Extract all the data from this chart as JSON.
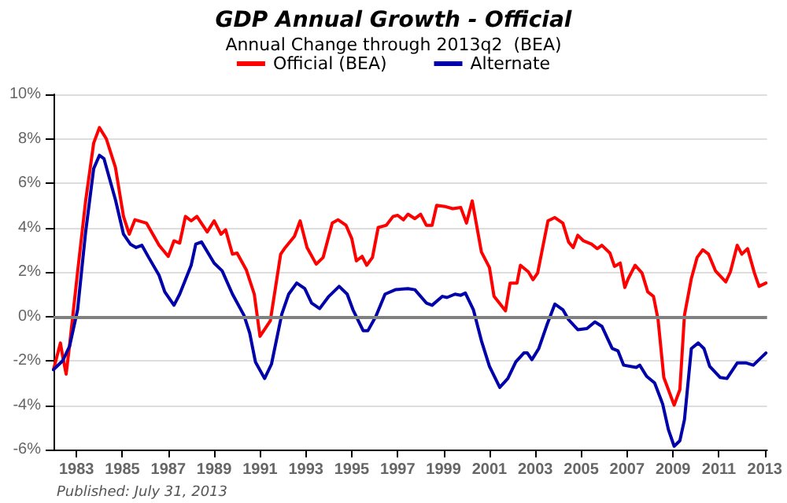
{
  "chart_data": {
    "type": "line",
    "title": "GDP Annual Growth - Official",
    "subtitle": "Annual Change through 2013q2  (BEA)",
    "annotations": [
      "Published: July 31, 2013"
    ],
    "xlim": [
      1982,
      2013.1
    ],
    "xticks": [
      1983,
      1985,
      1987,
      1989,
      1991,
      1993,
      1995,
      1997,
      1999,
      2001,
      2003,
      2005,
      2007,
      2009,
      2011,
      2013
    ],
    "ylim": [
      -6,
      10
    ],
    "yticks": [
      {
        "value": -6,
        "label": "-6%"
      },
      {
        "value": -4,
        "label": "-4%"
      },
      {
        "value": -2,
        "label": "-2%"
      },
      {
        "value": 0,
        "label": "0%"
      },
      {
        "value": 2,
        "label": "2%"
      },
      {
        "value": 4,
        "label": "4%"
      },
      {
        "value": 6,
        "label": "6%"
      },
      {
        "value": 8,
        "label": "8%"
      },
      {
        "value": 10,
        "label": "10%"
      }
    ],
    "grid": "y",
    "legend": "top",
    "marker": "none",
    "line_style": "solid",
    "ref_lines": [
      {
        "axis": "y",
        "value": 0,
        "label": null,
        "color": "#808080"
      }
    ],
    "series": [
      {
        "name": "Official (BEA)",
        "color": "#ff0000",
        "x": [
          1982.0,
          1982.3,
          1982.4,
          1982.55,
          1982.7,
          1983.05,
          1983.4,
          1983.75,
          1984.0,
          1984.3,
          1984.7,
          1985.05,
          1985.3,
          1985.55,
          1986.05,
          1986.6,
          1987.0,
          1987.25,
          1987.5,
          1987.75,
          1988.0,
          1988.25,
          1988.7,
          1989.0,
          1989.3,
          1989.5,
          1989.8,
          1990.0,
          1990.4,
          1990.75,
          1991.0,
          1991.45,
          1991.9,
          1992.1,
          1992.5,
          1992.75,
          1993.05,
          1993.45,
          1993.75,
          1994.15,
          1994.4,
          1994.75,
          1995.0,
          1995.2,
          1995.45,
          1995.65,
          1995.9,
          1996.15,
          1996.5,
          1996.8,
          1997.0,
          1997.25,
          1997.45,
          1997.75,
          1998.0,
          1998.25,
          1998.5,
          1998.7,
          1999.05,
          1999.4,
          1999.75,
          2000.0,
          2000.25,
          2000.65,
          2001.0,
          2001.2,
          2001.7,
          2001.9,
          2002.2,
          2002.35,
          2002.7,
          2002.9,
          2003.1,
          2003.55,
          2003.85,
          2004.2,
          2004.45,
          2004.65,
          2004.85,
          2005.1,
          2005.45,
          2005.7,
          2005.9,
          2006.25,
          2006.45,
          2006.7,
          2006.9,
          2007.05,
          2007.35,
          2007.65,
          2007.9,
          2008.15,
          2008.35,
          2008.6,
          2009.05,
          2009.3,
          2009.5,
          2009.8,
          2010.05,
          2010.3,
          2010.55,
          2010.85,
          2011.3,
          2011.5,
          2011.8,
          2012.0,
          2012.25,
          2012.55,
          2012.75,
          2013.05
        ],
        "values": [
          -2.4,
          -1.2,
          -1.8,
          -2.6,
          -1.3,
          2.0,
          5.2,
          7.8,
          8.5,
          8.0,
          6.7,
          4.5,
          3.7,
          4.35,
          4.2,
          3.2,
          2.7,
          3.4,
          3.3,
          4.5,
          4.3,
          4.5,
          3.8,
          4.3,
          3.7,
          3.9,
          2.8,
          2.85,
          2.1,
          1.0,
          -0.9,
          -0.2,
          2.8,
          3.1,
          3.6,
          4.3,
          3.1,
          2.35,
          2.65,
          4.2,
          4.35,
          4.1,
          3.5,
          2.5,
          2.7,
          2.3,
          2.65,
          4.0,
          4.1,
          4.5,
          4.55,
          4.35,
          4.6,
          4.4,
          4.6,
          4.1,
          4.1,
          5.0,
          4.95,
          4.85,
          4.9,
          4.2,
          5.2,
          2.9,
          2.2,
          0.9,
          0.25,
          1.5,
          1.5,
          2.3,
          2.0,
          1.65,
          1.95,
          4.3,
          4.45,
          4.2,
          3.35,
          3.1,
          3.65,
          3.4,
          3.25,
          3.05,
          3.2,
          2.85,
          2.25,
          2.4,
          1.3,
          1.7,
          2.3,
          1.95,
          1.1,
          0.9,
          -0.15,
          -2.75,
          -4.0,
          -3.3,
          0.05,
          1.7,
          2.65,
          3.0,
          2.8,
          2.05,
          1.55,
          2.0,
          3.2,
          2.8,
          3.05,
          1.95,
          1.35,
          1.5
        ]
      },
      {
        "name": "Alternate",
        "color": "#0000aa",
        "x": [
          1982.0,
          1982.4,
          1982.7,
          1983.05,
          1983.4,
          1983.75,
          1984.0,
          1984.2,
          1984.7,
          1985.05,
          1985.35,
          1985.6,
          1985.85,
          1986.15,
          1986.6,
          1986.85,
          1987.25,
          1987.5,
          1988.0,
          1988.2,
          1988.45,
          1989.0,
          1989.35,
          1989.8,
          1990.3,
          1990.55,
          1990.8,
          1991.2,
          1991.5,
          1991.95,
          1992.25,
          1992.6,
          1992.95,
          1993.25,
          1993.6,
          1994.0,
          1994.45,
          1994.8,
          1995.05,
          1995.5,
          1995.7,
          1996.05,
          1996.45,
          1996.9,
          1997.45,
          1997.75,
          1998.25,
          1998.5,
          1998.95,
          1999.15,
          1999.5,
          1999.75,
          1999.95,
          2000.3,
          2000.65,
          2001.0,
          2001.45,
          2001.8,
          2002.15,
          2002.5,
          2002.65,
          2002.85,
          2003.15,
          2003.5,
          2003.85,
          2004.2,
          2004.45,
          2004.85,
          2005.25,
          2005.6,
          2005.9,
          2006.35,
          2006.6,
          2006.85,
          2007.4,
          2007.55,
          2007.85,
          2008.2,
          2008.55,
          2008.8,
          2009.05,
          2009.3,
          2009.5,
          2009.8,
          2010.1,
          2010.35,
          2010.6,
          2011.05,
          2011.35,
          2011.8,
          2012.2,
          2012.5,
          2013.05
        ],
        "values": [
          -2.4,
          -2.0,
          -1.35,
          0.3,
          3.8,
          6.65,
          7.25,
          7.1,
          5.25,
          3.7,
          3.25,
          3.1,
          3.2,
          2.65,
          1.85,
          1.1,
          0.5,
          1.0,
          2.3,
          3.25,
          3.35,
          2.4,
          2.05,
          1.0,
          0.05,
          -0.75,
          -2.05,
          -2.8,
          -2.15,
          0.1,
          1.0,
          1.5,
          1.25,
          0.6,
          0.35,
          0.9,
          1.35,
          1.0,
          0.3,
          -0.65,
          -0.65,
          0.0,
          1.0,
          1.2,
          1.25,
          1.2,
          0.6,
          0.5,
          0.9,
          0.85,
          1.0,
          0.95,
          1.05,
          0.3,
          -1.1,
          -2.25,
          -3.2,
          -2.8,
          -2.05,
          -1.65,
          -1.65,
          -1.95,
          -1.45,
          -0.4,
          0.55,
          0.3,
          -0.15,
          -0.6,
          -0.55,
          -0.25,
          -0.45,
          -1.45,
          -1.55,
          -2.2,
          -2.3,
          -2.2,
          -2.7,
          -3.0,
          -3.95,
          -5.1,
          -5.85,
          -5.6,
          -4.65,
          -1.45,
          -1.2,
          -1.45,
          -2.25,
          -2.75,
          -2.8,
          -2.1,
          -2.1,
          -2.2,
          -1.65
        ]
      }
    ]
  }
}
